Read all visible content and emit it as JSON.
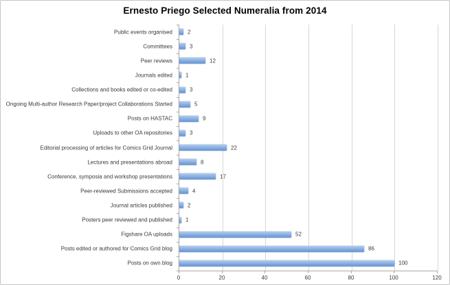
{
  "chart_data": {
    "type": "bar",
    "orientation": "horizontal",
    "title": "Ernesto Priego Selected Numeralia from 2014",
    "categories": [
      "Public events organised",
      "Committees",
      "Peer reviews",
      "Journals edited",
      "Collections and books edited or co-edited",
      "Ongoing Multi-author Research Paper/project Collaborations Started",
      "Posts on HASTAC",
      "Uploads to other OA repositories",
      "Editorial processing of articles for Comics Grid Journal",
      "Lectures and presentations abroad",
      "Conference, symposia and workshop presentations",
      "Peer-reviewed Submissions accepted",
      "Journal articles published",
      "Posters peer reviewed and published",
      "Figshare OA uploads",
      "Posts edited or authored for Comics Grid blog",
      "Posts on own blog"
    ],
    "values": [
      2,
      3,
      12,
      1,
      3,
      5,
      9,
      3,
      22,
      8,
      17,
      4,
      2,
      1,
      52,
      86,
      100
    ],
    "xlabel": "",
    "ylabel": "",
    "xlim": [
      0,
      120
    ],
    "xticks": [
      0,
      20,
      40,
      60,
      80,
      100,
      120
    ],
    "grid": true,
    "legend": false,
    "data_labels": true
  },
  "colors": {
    "bar_top": "#b3cdee",
    "bar_bottom": "#6c97d2",
    "gridline": "#d6d6d6",
    "axis": "#a6a6a6",
    "text": "#3a3a3a",
    "chart_border": "#c6c6c6",
    "background": "#ffffff"
  }
}
